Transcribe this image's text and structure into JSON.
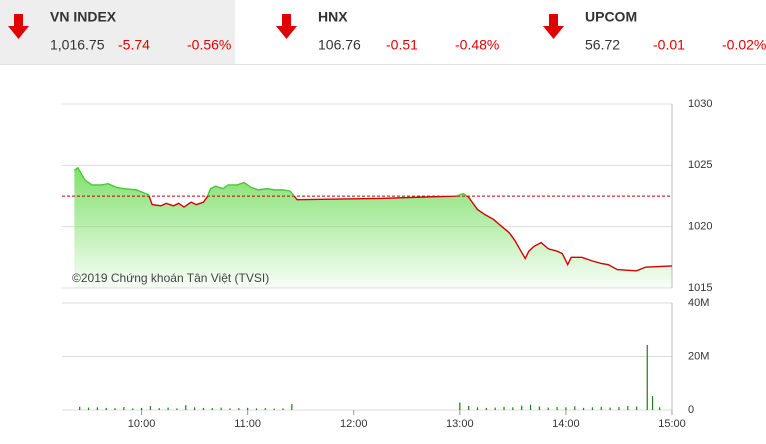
{
  "header": {
    "indices": [
      {
        "name": "VN INDEX",
        "value": "1,016.75",
        "change": "-5.74",
        "percent": "-0.56%"
      },
      {
        "name": "HNX",
        "value": "106.76",
        "change": "-0.51",
        "percent": "-0.48%"
      },
      {
        "name": "UPCOM",
        "value": "56.72",
        "change": "-0.01",
        "percent": "-0.02%"
      }
    ]
  },
  "chart_data": [
    {
      "type": "line",
      "annotation": "©2019 Chứng khoán Tân Việt (TVSI)",
      "x": [
        562,
        564,
        568,
        572,
        577,
        581,
        586,
        590,
        597,
        604,
        606,
        611,
        614,
        618,
        621,
        624,
        628,
        631,
        635,
        637,
        639,
        642,
        646,
        649,
        654,
        658,
        662,
        666,
        671,
        675,
        680,
        684,
        688,
        735,
        778,
        782,
        785,
        790,
        794,
        799,
        803,
        808,
        811,
        815,
        817,
        819,
        822,
        826,
        830,
        835,
        838,
        841,
        843,
        849,
        855,
        860,
        864,
        869,
        880,
        885,
        900
      ],
      "values": [
        1024.6,
        1024.8,
        1023.8,
        1023.4,
        1023.4,
        1023.5,
        1023.2,
        1023.1,
        1023.0,
        1022.6,
        1021.8,
        1021.7,
        1021.9,
        1021.7,
        1021.9,
        1021.6,
        1022.0,
        1021.8,
        1022.0,
        1022.4,
        1023.1,
        1023.3,
        1023.1,
        1023.4,
        1023.4,
        1023.6,
        1023.2,
        1023.0,
        1023.1,
        1023.0,
        1023.0,
        1022.9,
        1022.2,
        1022.3,
        1022.5,
        1022.7,
        1022.4,
        1021.4,
        1021.0,
        1020.6,
        1020.1,
        1019.5,
        1018.9,
        1017.9,
        1017.4,
        1018.0,
        1018.4,
        1018.7,
        1018.2,
        1018.0,
        1017.8,
        1016.9,
        1017.5,
        1017.5,
        1017.2,
        1017.0,
        1016.9,
        1016.5,
        1016.4,
        1016.7,
        1016.8
      ],
      "reference": 1022.49,
      "color": "#d40000",
      "up_color": "#4cc63a",
      "area_color": "#7fe06c",
      "xlim": [
        555,
        900
      ],
      "ylim": [
        1015,
        1030
      ],
      "yticks": [
        1015,
        1020,
        1025,
        1030
      ],
      "grid": true
    },
    {
      "type": "bar",
      "x": [
        565,
        570,
        575,
        580,
        585,
        590,
        595,
        600,
        605,
        610,
        615,
        620,
        625,
        630,
        635,
        640,
        645,
        650,
        655,
        660,
        665,
        670,
        675,
        680,
        685,
        780,
        785,
        790,
        795,
        800,
        805,
        810,
        815,
        820,
        825,
        830,
        835,
        840,
        845,
        850,
        855,
        860,
        865,
        870,
        875,
        880,
        886,
        889,
        893
      ],
      "values": [
        1200000,
        900000,
        1000000,
        800000,
        700000,
        1100000,
        600000,
        800000,
        1500000,
        700000,
        900000,
        600000,
        1800000,
        1000000,
        800000,
        700000,
        900000,
        600000,
        700000,
        800000,
        600000,
        700000,
        500000,
        600000,
        2200000,
        2800000,
        1500000,
        1000000,
        800000,
        900000,
        1200000,
        1000000,
        1600000,
        2000000,
        1300000,
        900000,
        1100000,
        1000000,
        1400000,
        800000,
        1000000,
        1200000,
        900000,
        1100000,
        1500000,
        1300000,
        24300000,
        5200000,
        1000000
      ],
      "color": "#1b7d1b",
      "xlim": [
        555,
        900
      ],
      "ylim": [
        0,
        40000000
      ],
      "yticks": [
        0,
        {
          "value": 20000000,
          "label": "20M"
        },
        {
          "value": 40000000,
          "label": "40M"
        }
      ],
      "xticks": [
        {
          "value": 600,
          "label": "10:00"
        },
        {
          "value": 660,
          "label": "11:00"
        },
        {
          "value": 720,
          "label": "12:00"
        },
        {
          "value": 780,
          "label": "13:00"
        },
        {
          "value": 840,
          "label": "14:00"
        },
        {
          "value": 900,
          "label": "15:00"
        }
      ],
      "grid": true
    }
  ]
}
